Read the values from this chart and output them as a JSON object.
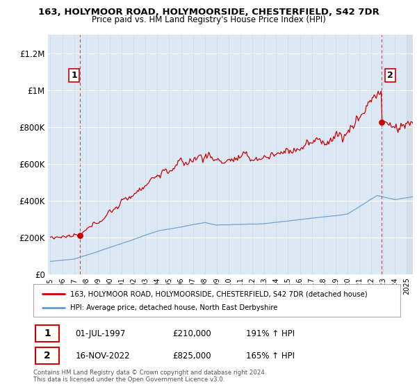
{
  "title1": "163, HOLYMOOR ROAD, HOLYMOORSIDE, CHESTERFIELD, S42 7DR",
  "title2": "Price paid vs. HM Land Registry's House Price Index (HPI)",
  "legend_line1": "163, HOLYMOOR ROAD, HOLYMOORSIDE, CHESTERFIELD, S42 7DR (detached house)",
  "legend_line2": "HPI: Average price, detached house, North East Derbyshire",
  "point1_label": "1",
  "point1_date": "01-JUL-1997",
  "point1_price": "£210,000",
  "point1_hpi": "191% ↑ HPI",
  "point1_year": 1997.5,
  "point1_value": 210000,
  "point2_label": "2",
  "point2_date": "16-NOV-2022",
  "point2_price": "£825,000",
  "point2_hpi": "165% ↑ HPI",
  "point2_year": 2022.875,
  "point2_value": 825000,
  "copyright": "Contains HM Land Registry data © Crown copyright and database right 2024.\nThis data is licensed under the Open Government Licence v3.0.",
  "red_color": "#cc0000",
  "blue_color": "#6699cc",
  "background_plot": "#dce9f5",
  "background_fig": "#ffffff",
  "ylim_max": 1300000,
  "xlim_start": 1994.8,
  "xlim_end": 2025.5
}
